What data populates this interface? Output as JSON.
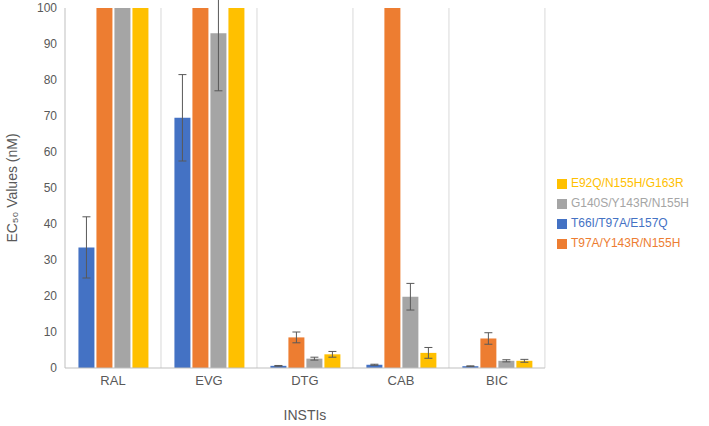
{
  "chart_data": {
    "type": "bar",
    "x_label": "INSTIs",
    "y_label": "EC₅₀ Values (nM)",
    "categories": [
      "RAL",
      "EVG",
      "DTG",
      "CAB",
      "BIC"
    ],
    "series": [
      {
        "name": "T66I/T97A/E157Q",
        "color": "#4472c4",
        "values": [
          33.5,
          69.5,
          0.6,
          0.9,
          0.5
        ],
        "errors": [
          8.5,
          12,
          0.1,
          0.15,
          0.1
        ]
      },
      {
        "name": "T97A/Y143R/N155H",
        "color": "#ed7d31",
        "values": [
          100,
          100,
          8.5,
          100,
          8.2
        ],
        "errors": [
          0,
          0,
          1.5,
          0,
          1.6
        ]
      },
      {
        "name": "G140S/Y143R/N155H",
        "color": "#a5a5a5",
        "values": [
          100,
          93,
          2.6,
          19.8,
          2.0
        ],
        "errors": [
          0,
          16,
          0.4,
          3.7,
          0.3
        ]
      },
      {
        "name": "E92Q/N155H/G163R",
        "color": "#ffc000",
        "values": [
          100,
          100,
          3.8,
          4.2,
          2.0
        ],
        "errors": [
          0,
          0,
          0.8,
          1.5,
          0.4
        ]
      }
    ],
    "ylim": [
      0,
      100
    ],
    "yticks": [
      0,
      10,
      20,
      30,
      40,
      50,
      60,
      70,
      80,
      90,
      100
    ],
    "grid": true,
    "legend": "right"
  }
}
